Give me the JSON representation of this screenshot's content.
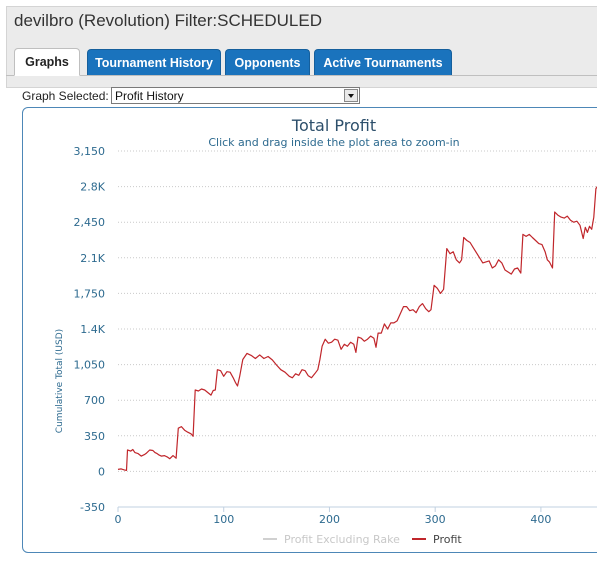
{
  "page": {
    "title": "devilbro (Revolution) Filter:SCHEDULED"
  },
  "tabs": [
    {
      "label": "Graphs",
      "active": true
    },
    {
      "label": "Tournament History",
      "active": false
    },
    {
      "label": "Opponents",
      "active": false
    },
    {
      "label": "Active Tournaments",
      "active": false
    }
  ],
  "graph_select": {
    "label": "Graph Selected:",
    "value": "Profit History"
  },
  "colors": {
    "tab_active_bg": "#ffffff",
    "tab_bg": "#1a73bd",
    "profit_line": "#c0262b",
    "profit_excl_rake_line": "#d0d0d0",
    "axis_text": "#2d6a8f"
  },
  "chart_data": {
    "type": "line",
    "title": "Total Profit",
    "subtitle": "Click and drag inside the plot area to zoom-in",
    "xlabel": "",
    "ylabel": "Cumulative Total (USD)",
    "xlim": [
      0,
      454
    ],
    "ylim": [
      -350,
      3150
    ],
    "x_ticks": [
      0,
      100,
      200,
      300,
      400
    ],
    "x_tick_labels": [
      "0",
      "100",
      "200",
      "300",
      "400"
    ],
    "y_ticks": [
      -350,
      0,
      350,
      700,
      1050,
      1400,
      1750,
      2100,
      2450,
      2800,
      3150
    ],
    "y_tick_labels": [
      "-350",
      "0",
      "350",
      "700",
      "1,050",
      "1.4K",
      "1,750",
      "2.1K",
      "2,450",
      "2.8K",
      "3,150"
    ],
    "grid": true,
    "legend_position": "bottom-center",
    "series": [
      {
        "name": "Profit Excluding Rake",
        "color": "#d0d0d0",
        "hidden": true,
        "points": []
      },
      {
        "name": "Profit",
        "color": "#c0262b",
        "points": [
          [
            0,
            20
          ],
          [
            3,
            25
          ],
          [
            6,
            15
          ],
          [
            8,
            10
          ],
          [
            9,
            210
          ],
          [
            12,
            200
          ],
          [
            14,
            215
          ],
          [
            16,
            185
          ],
          [
            19,
            175
          ],
          [
            22,
            150
          ],
          [
            25,
            165
          ],
          [
            27,
            180
          ],
          [
            30,
            210
          ],
          [
            33,
            205
          ],
          [
            35,
            185
          ],
          [
            37,
            175
          ],
          [
            39,
            160
          ],
          [
            41,
            150
          ],
          [
            44,
            155
          ],
          [
            47,
            140
          ],
          [
            49,
            125
          ],
          [
            52,
            155
          ],
          [
            55,
            130
          ],
          [
            57,
            425
          ],
          [
            60,
            440
          ],
          [
            63,
            405
          ],
          [
            66,
            385
          ],
          [
            69,
            370
          ],
          [
            71,
            345
          ],
          [
            73,
            800
          ],
          [
            76,
            790
          ],
          [
            79,
            810
          ],
          [
            82,
            800
          ],
          [
            85,
            775
          ],
          [
            88,
            750
          ],
          [
            90,
            795
          ],
          [
            92,
            800
          ],
          [
            94,
            1000
          ],
          [
            97,
            990
          ],
          [
            100,
            935
          ],
          [
            103,
            980
          ],
          [
            106,
            975
          ],
          [
            109,
            920
          ],
          [
            111,
            875
          ],
          [
            113,
            840
          ],
          [
            115,
            930
          ],
          [
            118,
            1100
          ],
          [
            122,
            1160
          ],
          [
            126,
            1140
          ],
          [
            130,
            1110
          ],
          [
            134,
            1145
          ],
          [
            138,
            1110
          ],
          [
            142,
            1130
          ],
          [
            146,
            1095
          ],
          [
            150,
            1045
          ],
          [
            154,
            1000
          ],
          [
            158,
            975
          ],
          [
            162,
            935
          ],
          [
            165,
            920
          ],
          [
            168,
            960
          ],
          [
            171,
            945
          ],
          [
            174,
            1000
          ],
          [
            177,
            990
          ],
          [
            180,
            940
          ],
          [
            183,
            920
          ],
          [
            186,
            960
          ],
          [
            189,
            1000
          ],
          [
            191,
            1100
          ],
          [
            193,
            1230
          ],
          [
            196,
            1300
          ],
          [
            199,
            1260
          ],
          [
            202,
            1270
          ],
          [
            205,
            1300
          ],
          [
            208,
            1290
          ],
          [
            211,
            1200
          ],
          [
            214,
            1250
          ],
          [
            217,
            1230
          ],
          [
            220,
            1270
          ],
          [
            223,
            1250
          ],
          [
            225,
            1170
          ],
          [
            227,
            1320
          ],
          [
            230,
            1310
          ],
          [
            233,
            1280
          ],
          [
            236,
            1300
          ],
          [
            239,
            1330
          ],
          [
            242,
            1310
          ],
          [
            244,
            1220
          ],
          [
            246,
            1360
          ],
          [
            249,
            1360
          ],
          [
            252,
            1450
          ],
          [
            255,
            1400
          ],
          [
            258,
            1460
          ],
          [
            261,
            1460
          ],
          [
            264,
            1480
          ],
          [
            267,
            1550
          ],
          [
            270,
            1620
          ],
          [
            273,
            1620
          ],
          [
            276,
            1580
          ],
          [
            279,
            1590
          ],
          [
            282,
            1560
          ],
          [
            285,
            1620
          ],
          [
            288,
            1650
          ],
          [
            291,
            1600
          ],
          [
            294,
            1570
          ],
          [
            296,
            1590
          ],
          [
            299,
            1830
          ],
          [
            302,
            1800
          ],
          [
            305,
            1750
          ],
          [
            308,
            1790
          ],
          [
            311,
            2190
          ],
          [
            314,
            2140
          ],
          [
            317,
            2160
          ],
          [
            320,
            2080
          ],
          [
            323,
            2050
          ],
          [
            325,
            2080
          ],
          [
            327,
            2300
          ],
          [
            330,
            2270
          ],
          [
            333,
            2250
          ],
          [
            336,
            2200
          ],
          [
            339,
            2150
          ],
          [
            342,
            2100
          ],
          [
            345,
            2050
          ],
          [
            348,
            2060
          ],
          [
            351,
            2070
          ],
          [
            354,
            2000
          ],
          [
            357,
            2020
          ],
          [
            360,
            2080
          ],
          [
            363,
            2050
          ],
          [
            366,
            1980
          ],
          [
            369,
            1960
          ],
          [
            372,
            1940
          ],
          [
            375,
            1990
          ],
          [
            378,
            2000
          ],
          [
            381,
            1950
          ],
          [
            383,
            2330
          ],
          [
            386,
            2310
          ],
          [
            389,
            2330
          ],
          [
            392,
            2300
          ],
          [
            395,
            2270
          ],
          [
            398,
            2240
          ],
          [
            401,
            2230
          ],
          [
            404,
            2160
          ],
          [
            406,
            2080
          ],
          [
            408,
            2060
          ],
          [
            411,
            2000
          ],
          [
            413,
            2550
          ],
          [
            416,
            2520
          ],
          [
            419,
            2500
          ],
          [
            422,
            2490
          ],
          [
            425,
            2510
          ],
          [
            428,
            2470
          ],
          [
            431,
            2450
          ],
          [
            434,
            2460
          ],
          [
            437,
            2420
          ],
          [
            440,
            2290
          ],
          [
            442,
            2400
          ],
          [
            444,
            2350
          ],
          [
            446,
            2410
          ],
          [
            448,
            2380
          ],
          [
            450,
            2500
          ],
          [
            452,
            2780
          ],
          [
            454,
            2810
          ]
        ]
      }
    ]
  }
}
